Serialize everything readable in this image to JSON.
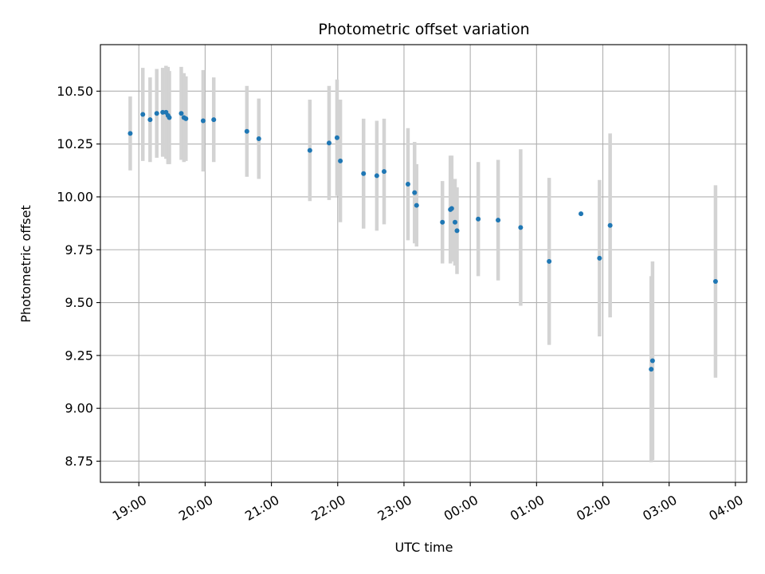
{
  "chart_data": {
    "type": "scatter",
    "title": "Photometric offset variation",
    "xlabel": "UTC time",
    "ylabel": "Photometric offset",
    "x_unit": "hours since 19:00 UTC",
    "x_ticks": [
      {
        "label": "19:00",
        "value": 0
      },
      {
        "label": "20:00",
        "value": 1
      },
      {
        "label": "21:00",
        "value": 2
      },
      {
        "label": "22:00",
        "value": 3
      },
      {
        "label": "23:00",
        "value": 4
      },
      {
        "label": "00:00",
        "value": 5
      },
      {
        "label": "01:00",
        "value": 6
      },
      {
        "label": "02:00",
        "value": 7
      },
      {
        "label": "03:00",
        "value": 8
      },
      {
        "label": "04:00",
        "value": 9
      }
    ],
    "y_ticks": [
      "8.75",
      "9.00",
      "9.25",
      "9.50",
      "9.75",
      "10.00",
      "10.25",
      "10.50"
    ],
    "xlim": [
      -0.58,
      9.17
    ],
    "ylim": [
      8.65,
      10.72
    ],
    "grid": true,
    "colors": {
      "points": "#1f77b4",
      "error_bars": "#d3d3d3",
      "grid": "#b0b0b0"
    },
    "series": [
      {
        "points": [
          {
            "x": -0.13,
            "y": 10.3,
            "err": 0.175
          },
          {
            "x": 0.06,
            "y": 10.39,
            "err": 0.22
          },
          {
            "x": 0.17,
            "y": 10.365,
            "err": 0.2
          },
          {
            "x": 0.27,
            "y": 10.395,
            "err": 0.21
          },
          {
            "x": 0.36,
            "y": 10.4,
            "err": 0.21
          },
          {
            "x": 0.41,
            "y": 10.4,
            "err": 0.22
          },
          {
            "x": 0.44,
            "y": 10.385,
            "err": 0.23
          },
          {
            "x": 0.46,
            "y": 10.375,
            "err": 0.22
          },
          {
            "x": 0.64,
            "y": 10.395,
            "err": 0.22
          },
          {
            "x": 0.68,
            "y": 10.375,
            "err": 0.21
          },
          {
            "x": 0.71,
            "y": 10.37,
            "err": 0.2
          },
          {
            "x": 0.97,
            "y": 10.36,
            "err": 0.24
          },
          {
            "x": 1.13,
            "y": 10.365,
            "err": 0.2
          },
          {
            "x": 1.63,
            "y": 10.31,
            "err": 0.215
          },
          {
            "x": 1.81,
            "y": 10.275,
            "err": 0.19
          },
          {
            "x": 2.58,
            "y": 10.22,
            "err": 0.24
          },
          {
            "x": 2.87,
            "y": 10.255,
            "err": 0.27
          },
          {
            "x": 2.99,
            "y": 10.28,
            "err": 0.275
          },
          {
            "x": 3.04,
            "y": 10.17,
            "err": 0.29
          },
          {
            "x": 3.39,
            "y": 10.11,
            "err": 0.26
          },
          {
            "x": 3.59,
            "y": 10.1,
            "err": 0.26
          },
          {
            "x": 3.7,
            "y": 10.12,
            "err": 0.25
          },
          {
            "x": 4.06,
            "y": 10.06,
            "err": 0.265
          },
          {
            "x": 4.16,
            "y": 10.02,
            "err": 0.24
          },
          {
            "x": 4.19,
            "y": 9.96,
            "err": 0.195
          },
          {
            "x": 4.58,
            "y": 9.88,
            "err": 0.195
          },
          {
            "x": 4.7,
            "y": 9.94,
            "err": 0.255
          },
          {
            "x": 4.72,
            "y": 9.945,
            "err": 0.25
          },
          {
            "x": 4.77,
            "y": 9.88,
            "err": 0.205
          },
          {
            "x": 4.8,
            "y": 9.84,
            "err": 0.205
          },
          {
            "x": 5.12,
            "y": 9.895,
            "err": 0.27
          },
          {
            "x": 5.42,
            "y": 9.89,
            "err": 0.285
          },
          {
            "x": 5.76,
            "y": 9.855,
            "err": 0.37
          },
          {
            "x": 6.19,
            "y": 9.695,
            "err": 0.395
          },
          {
            "x": 6.67,
            "y": 9.92
          },
          {
            "x": 6.95,
            "y": 9.71,
            "err": 0.37
          },
          {
            "x": 7.11,
            "y": 9.865,
            "err": 0.435
          },
          {
            "x": 7.73,
            "y": 9.185,
            "err": 0.44
          },
          {
            "x": 7.75,
            "y": 9.225,
            "err": 0.47
          },
          {
            "x": 8.7,
            "y": 9.6,
            "err": 0.455
          }
        ]
      }
    ]
  }
}
